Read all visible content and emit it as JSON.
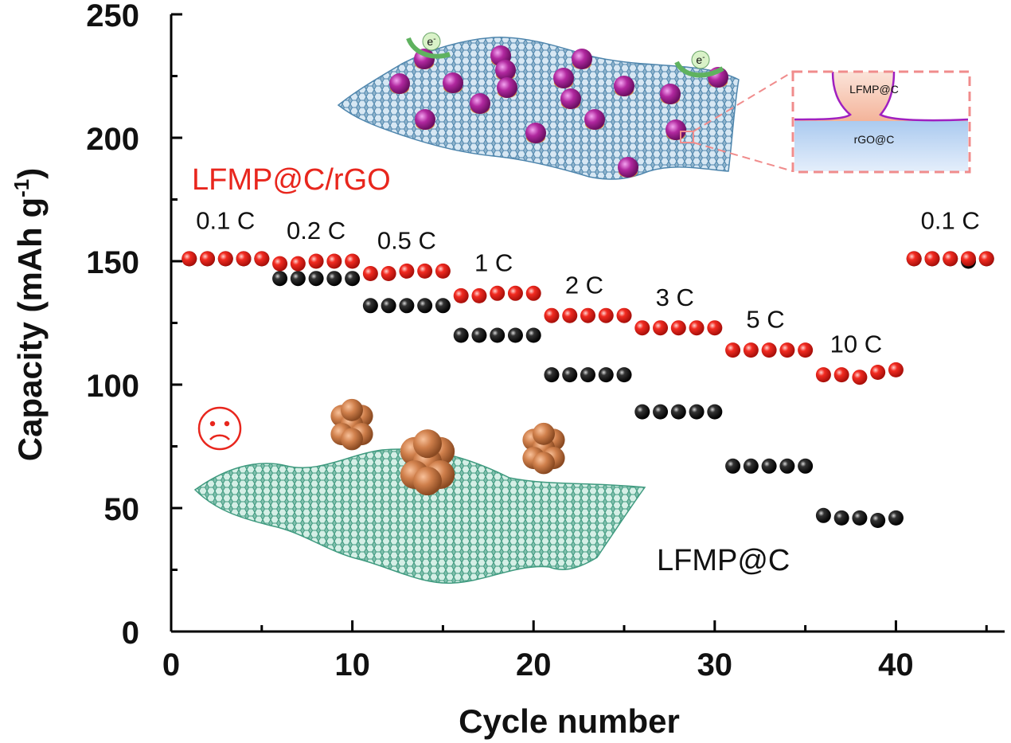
{
  "chart_data": {
    "type": "scatter",
    "title": "",
    "xlabel": "Cycle number",
    "ylabel": "Capacity (mAh g",
    "ylabel_sup": "-1",
    "ylabel_tail": ")",
    "xlim": [
      0,
      46
    ],
    "ylim": [
      0,
      250
    ],
    "xticks": [
      0,
      10,
      20,
      30,
      40
    ],
    "yticks": [
      0,
      50,
      100,
      150,
      200,
      250
    ],
    "series": [
      {
        "name": "LFMP@C/rGO",
        "color": "#e8261d",
        "x": [
          1,
          2,
          3,
          4,
          5,
          6,
          7,
          8,
          9,
          10,
          11,
          12,
          13,
          14,
          15,
          16,
          17,
          18,
          19,
          20,
          21,
          22,
          23,
          24,
          25,
          26,
          27,
          28,
          29,
          30,
          31,
          32,
          33,
          34,
          35,
          36,
          37,
          38,
          39,
          40,
          41,
          42,
          43,
          44,
          45
        ],
        "values": [
          151,
          151,
          151,
          151,
          151,
          149,
          149,
          150,
          150,
          150,
          145,
          145,
          146,
          146,
          146,
          136,
          136,
          137,
          137,
          137,
          128,
          128,
          128,
          128,
          128,
          123,
          123,
          123,
          123,
          123,
          114,
          114,
          114,
          114,
          114,
          104,
          104,
          103,
          105,
          106,
          151,
          151,
          151,
          151,
          151
        ]
      },
      {
        "name": "LFMP@C",
        "color": "#111111",
        "x": [
          1,
          2,
          3,
          4,
          5,
          6,
          7,
          8,
          9,
          10,
          11,
          12,
          13,
          14,
          15,
          16,
          17,
          18,
          19,
          20,
          21,
          22,
          23,
          24,
          25,
          26,
          27,
          28,
          29,
          30,
          31,
          32,
          33,
          34,
          35,
          36,
          37,
          38,
          39,
          40,
          41,
          42,
          43,
          44,
          45
        ],
        "values": [
          151,
          151,
          151,
          151,
          151,
          143,
          143,
          143,
          143,
          143,
          132,
          132,
          132,
          132,
          132,
          120,
          120,
          120,
          120,
          120,
          104,
          104,
          104,
          104,
          104,
          89,
          89,
          89,
          89,
          89,
          67,
          67,
          67,
          67,
          67,
          47,
          46,
          46,
          45,
          46,
          151,
          151,
          151,
          150,
          151
        ]
      }
    ],
    "rate_labels": [
      {
        "text": "0.1 C",
        "x": 3,
        "y": 163
      },
      {
        "text": "0.2 C",
        "x": 8,
        "y": 159
      },
      {
        "text": "0.5 C",
        "x": 13,
        "y": 155
      },
      {
        "text": "1 C",
        "x": 17.8,
        "y": 146
      },
      {
        "text": "2 C",
        "x": 22.8,
        "y": 137
      },
      {
        "text": "3 C",
        "x": 27.8,
        "y": 132
      },
      {
        "text": "5 C",
        "x": 32.8,
        "y": 123
      },
      {
        "text": "10 C",
        "x": 37.8,
        "y": 113
      },
      {
        "text": "0.1 C",
        "x": 43,
        "y": 163
      }
    ],
    "annotations": {
      "red_label": "LFMP@C/rGO",
      "black_label": "LFMP@C",
      "inset_top": "LFMP@C",
      "inset_bottom": "rGO@C",
      "electron": "e",
      "electron_sup": "-"
    }
  }
}
